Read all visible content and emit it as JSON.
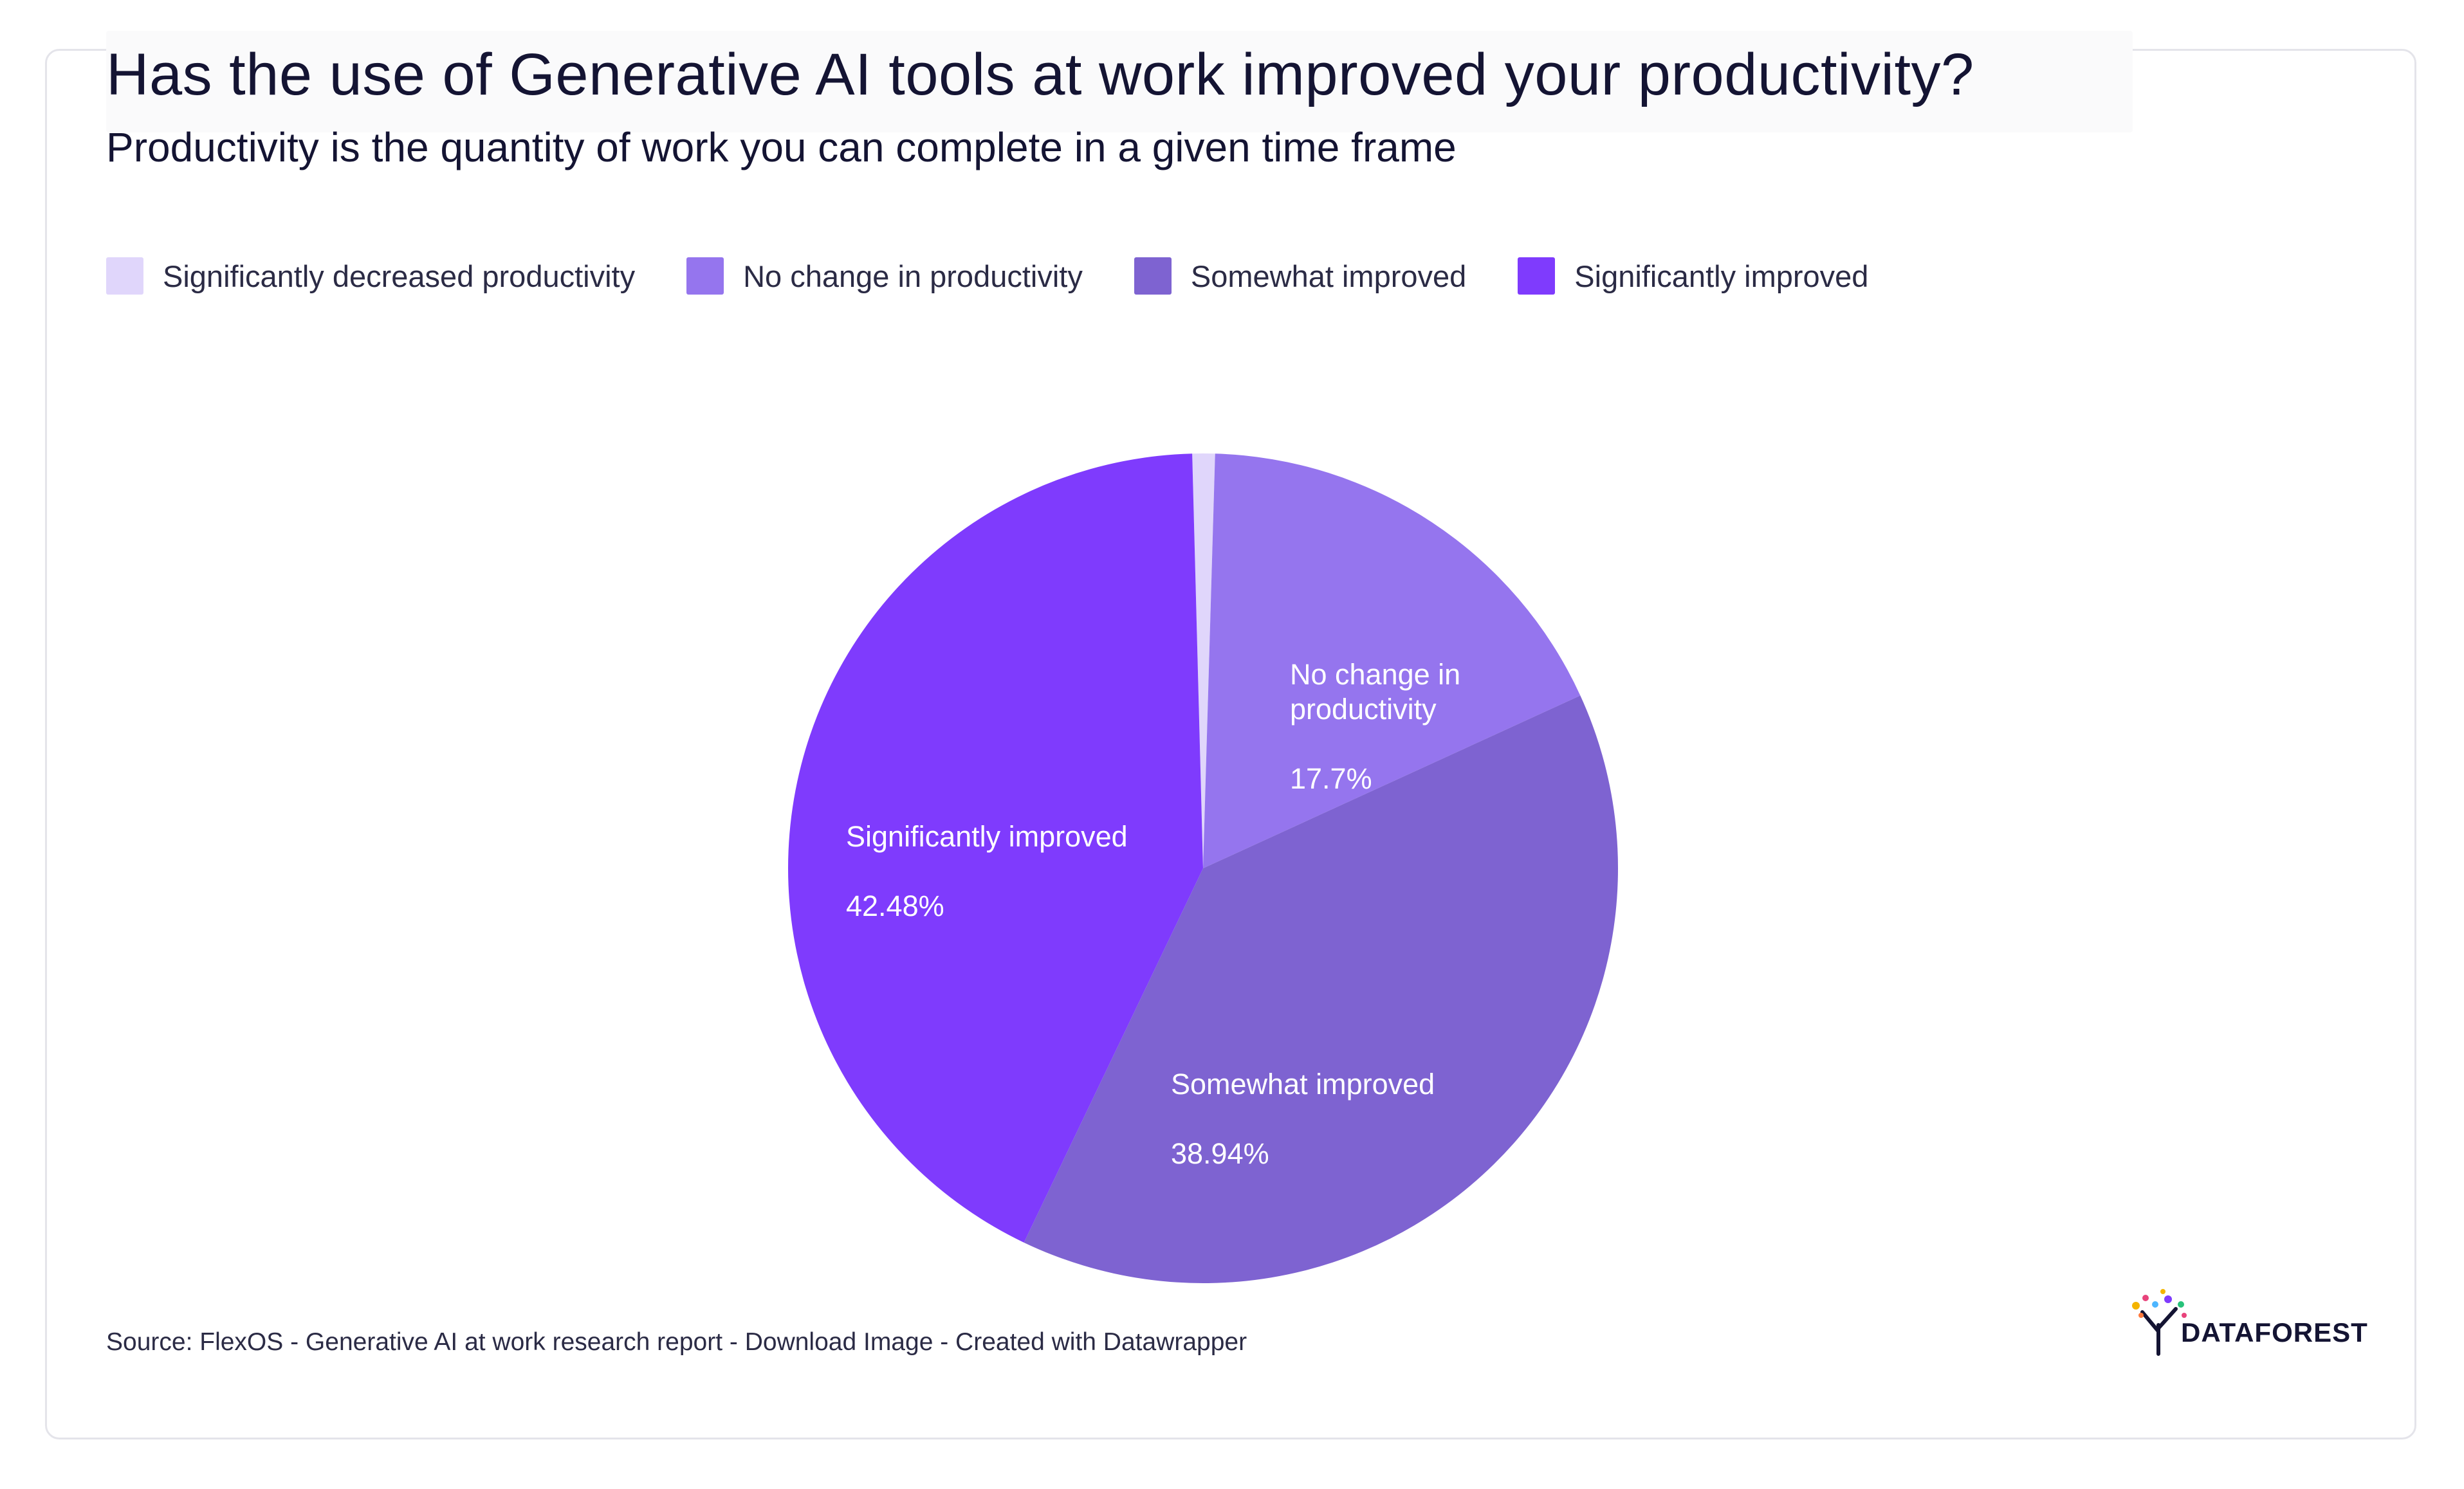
{
  "chart_data": {
    "type": "pie",
    "title": "Has the use of Generative AI tools at work improved your productivity?",
    "subtitle": "Productivity is the quantity of work you can complete in a given time frame",
    "legend_position": "top-left",
    "slices": [
      {
        "label": "Significantly decreased productivity",
        "value": 0.88,
        "color": "#e0d6fb",
        "value_label": ""
      },
      {
        "label": "No change in productivity",
        "value": 17.7,
        "color": "#9575ee",
        "value_label": "17.7%"
      },
      {
        "label": "Somewhat improved",
        "value": 38.94,
        "color": "#7e63d1",
        "value_label": "38.94%"
      },
      {
        "label": "Significantly improved",
        "value": 42.48,
        "color": "#7f3bfd",
        "value_label": "42.48%"
      }
    ],
    "slice_labels": {
      "no_change": "No change in\nproductivity",
      "somewhat": "Somewhat improved",
      "significantly": "Significantly improved"
    }
  },
  "legend": [
    {
      "label": "Significantly decreased productivity",
      "color": "#e0d6fb"
    },
    {
      "label": "No change in productivity",
      "color": "#9575ee"
    },
    {
      "label": "Somewhat improved",
      "color": "#7e63d1"
    },
    {
      "label": "Significantly improved",
      "color": "#7f3bfd"
    }
  ],
  "source": "Source: FlexOS - Generative AI at work research report - Download Image - Created with Datawrapper",
  "logo_text": "DATAFOREST",
  "icons": {
    "logo": "tree-logo-icon"
  }
}
